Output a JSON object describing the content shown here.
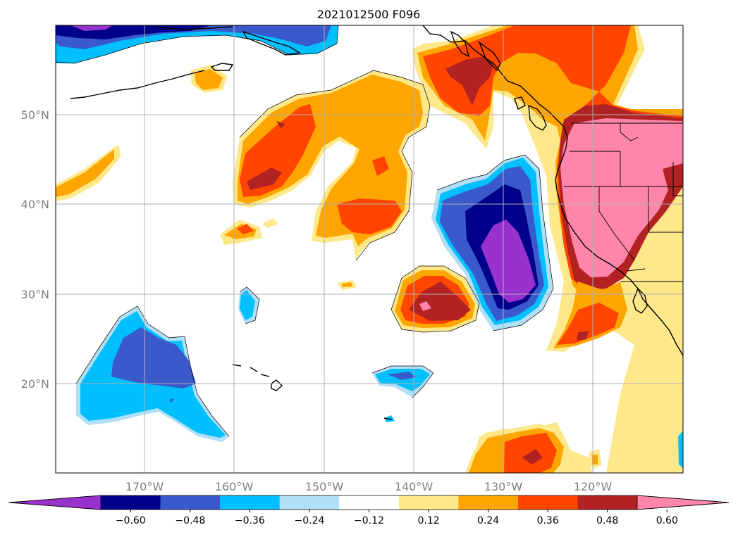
{
  "title": "2021012500 F096",
  "map": {
    "lon_range": [
      -180,
      -110
    ],
    "lat_range": [
      10,
      60
    ],
    "lat_labels": [
      "20°N",
      "30°N",
      "40°N",
      "50°N"
    ],
    "lon_labels": [
      "170°W",
      "160°W",
      "150°W",
      "140°W",
      "130°W",
      "120°W"
    ],
    "grid": true,
    "colors": {
      "c1": "#9932cc",
      "c2": "#00008b",
      "c3": "#3a5acb",
      "c4": "#00bfff",
      "c5": "#b0e0f8",
      "c6": "#ffffff",
      "c7": "#ffe88a",
      "c8": "#ffa500",
      "c9": "#ff4500",
      "c10": "#b22222",
      "c11": "#ff85aa"
    }
  },
  "colorbar": {
    "labels": [
      "−0.60",
      "−0.48",
      "−0.36",
      "−0.24",
      "−0.12",
      "0.12",
      "0.24",
      "0.36",
      "0.48",
      "0.60"
    ],
    "colors": [
      "#9932cc",
      "#00008b",
      "#3a5acb",
      "#00bfff",
      "#b0e0f8",
      "#ffffff",
      "#ffe88a",
      "#ffa500",
      "#ff4500",
      "#b22222",
      "#ff85aa"
    ]
  }
}
